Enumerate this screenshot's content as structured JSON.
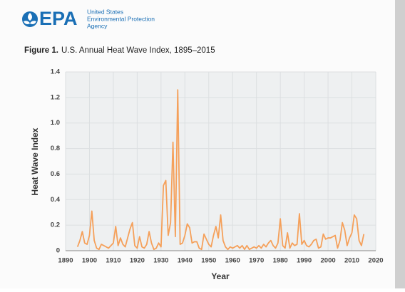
{
  "header": {
    "logo": "EPA",
    "agency": [
      "United States",
      "Environmental Protection",
      "Agency"
    ]
  },
  "chart_data": {
    "type": "line",
    "figure_label": "Figure 1.",
    "title": "U.S. Annual Heat Wave Index, 1895–2015",
    "xlabel": "Year",
    "ylabel": "Heat Wave Index",
    "color": "#f5a05a",
    "x": [
      1895,
      1896,
      1897,
      1898,
      1899,
      1900,
      1901,
      1902,
      1903,
      1904,
      1905,
      1906,
      1907,
      1908,
      1909,
      1910,
      1911,
      1912,
      1913,
      1914,
      1915,
      1916,
      1917,
      1918,
      1919,
      1920,
      1921,
      1922,
      1923,
      1924,
      1925,
      1926,
      1927,
      1928,
      1929,
      1930,
      1931,
      1932,
      1933,
      1934,
      1935,
      1936,
      1937,
      1938,
      1939,
      1940,
      1941,
      1942,
      1943,
      1944,
      1945,
      1946,
      1947,
      1948,
      1949,
      1950,
      1951,
      1952,
      1953,
      1954,
      1955,
      1956,
      1957,
      1958,
      1959,
      1960,
      1961,
      1962,
      1963,
      1964,
      1965,
      1966,
      1967,
      1968,
      1969,
      1970,
      1971,
      1972,
      1973,
      1974,
      1975,
      1976,
      1977,
      1978,
      1979,
      1980,
      1981,
      1982,
      1983,
      1984,
      1985,
      1986,
      1987,
      1988,
      1989,
      1990,
      1991,
      1992,
      1993,
      1994,
      1995,
      1996,
      1997,
      1998,
      1999,
      2000,
      2001,
      2002,
      2003,
      2004,
      2005,
      2006,
      2007,
      2008,
      2009,
      2010,
      2011,
      2012,
      2013,
      2014,
      2015
    ],
    "values": [
      0.03,
      0.08,
      0.15,
      0.06,
      0.05,
      0.12,
      0.31,
      0.08,
      0.02,
      0.01,
      0.05,
      0.04,
      0.03,
      0.02,
      0.04,
      0.06,
      0.19,
      0.04,
      0.1,
      0.05,
      0.03,
      0.1,
      0.17,
      0.22,
      0.04,
      0.02,
      0.11,
      0.03,
      0.02,
      0.05,
      0.15,
      0.06,
      0.01,
      0.02,
      0.06,
      0.03,
      0.51,
      0.55,
      0.12,
      0.22,
      0.85,
      0.11,
      1.26,
      0.05,
      0.06,
      0.12,
      0.21,
      0.18,
      0.06,
      0.07,
      0.07,
      0.02,
      0.01,
      0.13,
      0.09,
      0.05,
      0.03,
      0.12,
      0.19,
      0.1,
      0.28,
      0.08,
      0.03,
      0.01,
      0.03,
      0.02,
      0.03,
      0.04,
      0.02,
      0.04,
      0.01,
      0.04,
      0.01,
      0.02,
      0.03,
      0.02,
      0.04,
      0.02,
      0.05,
      0.03,
      0.06,
      0.08,
      0.04,
      0.02,
      0.06,
      0.25,
      0.04,
      0.02,
      0.14,
      0.02,
      0.06,
      0.04,
      0.05,
      0.29,
      0.05,
      0.08,
      0.04,
      0.03,
      0.05,
      0.08,
      0.09,
      0.02,
      0.03,
      0.13,
      0.09,
      0.1,
      0.1,
      0.11,
      0.12,
      0.02,
      0.08,
      0.22,
      0.16,
      0.04,
      0.1,
      0.14,
      0.28,
      0.25,
      0.08,
      0.04,
      0.13
    ],
    "xlim": [
      1890,
      2020
    ],
    "xticks": [
      1890,
      1900,
      1910,
      1920,
      1930,
      1940,
      1950,
      1960,
      1970,
      1980,
      1990,
      2000,
      2010,
      2020
    ],
    "ylim": [
      0,
      1.4
    ],
    "yticks": [
      0,
      0.2,
      0.4,
      0.6,
      0.8,
      {
        "value": 1,
        "label": "1.0"
      },
      1.2,
      1.4
    ],
    "grid": true
  }
}
